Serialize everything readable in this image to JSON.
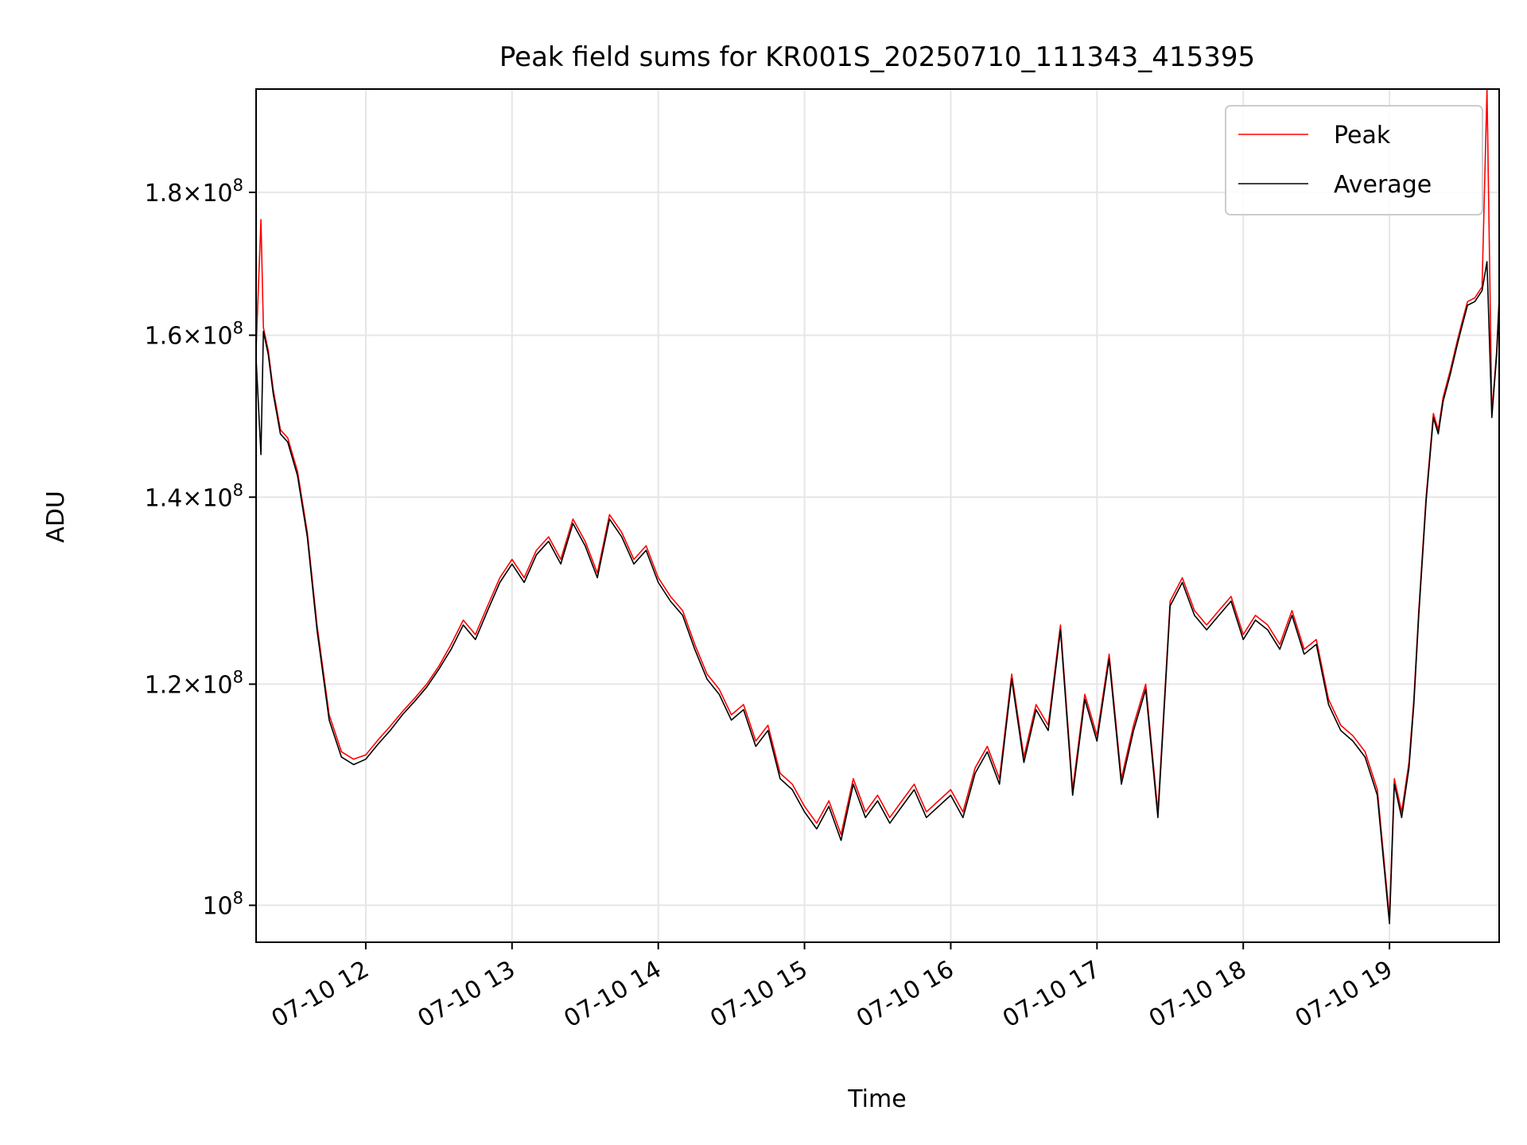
{
  "chart_data": {
    "type": "line",
    "title": "Peak field sums for KR001S_20250710_111343_415395",
    "xlabel": "Time",
    "ylabel": "ADU",
    "yscale": "log",
    "grid": true,
    "legend_position": "upper right",
    "xlim": [
      "2025-07-10 11:15",
      "2025-07-10 19:45"
    ],
    "ylim": [
      97000000,
      196000000
    ],
    "x_ticks": [
      {
        "time": "2025-07-10 12:00",
        "label": "07-10 12"
      },
      {
        "time": "2025-07-10 13:00",
        "label": "07-10 13"
      },
      {
        "time": "2025-07-10 14:00",
        "label": "07-10 14"
      },
      {
        "time": "2025-07-10 15:00",
        "label": "07-10 15"
      },
      {
        "time": "2025-07-10 16:00",
        "label": "07-10 16"
      },
      {
        "time": "2025-07-10 17:00",
        "label": "07-10 17"
      },
      {
        "time": "2025-07-10 18:00",
        "label": "07-10 18"
      },
      {
        "time": "2025-07-10 19:00",
        "label": "07-10 19"
      }
    ],
    "y_ticks": [
      {
        "value": 100000000,
        "mantissa": "",
        "exponent": "8"
      },
      {
        "value": 120000000,
        "mantissa": "1.2",
        "exponent": "8"
      },
      {
        "value": 140000000,
        "mantissa": "1.4",
        "exponent": "8"
      },
      {
        "value": 160000000,
        "mantissa": "1.6",
        "exponent": "8"
      },
      {
        "value": 180000000,
        "mantissa": "1.8",
        "exponent": "8"
      }
    ],
    "series": [
      {
        "name": "Peak",
        "color": "#ff0000",
        "x": [
          "11:15",
          "11:17",
          "11:18",
          "11:20",
          "11:22",
          "11:25",
          "11:28",
          "11:32",
          "11:36",
          "11:40",
          "11:45",
          "11:50",
          "11:55",
          "12:00",
          "12:05",
          "12:10",
          "12:15",
          "12:20",
          "12:25",
          "12:30",
          "12:35",
          "12:40",
          "12:45",
          "12:50",
          "12:55",
          "13:00",
          "13:05",
          "13:10",
          "13:15",
          "13:20",
          "13:25",
          "13:30",
          "13:35",
          "13:40",
          "13:45",
          "13:50",
          "13:55",
          "14:00",
          "14:05",
          "14:10",
          "14:15",
          "14:20",
          "14:25",
          "14:30",
          "14:35",
          "14:40",
          "14:45",
          "14:50",
          "14:55",
          "15:00",
          "15:05",
          "15:10",
          "15:15",
          "15:20",
          "15:25",
          "15:30",
          "15:35",
          "15:40",
          "15:45",
          "15:50",
          "15:55",
          "16:00",
          "16:05",
          "16:10",
          "16:15",
          "16:20",
          "16:25",
          "16:30",
          "16:35",
          "16:40",
          "16:45",
          "16:50",
          "16:55",
          "17:00",
          "17:05",
          "17:10",
          "17:15",
          "17:20",
          "17:25",
          "17:30",
          "17:35",
          "17:40",
          "17:45",
          "17:50",
          "17:55",
          "18:00",
          "18:05",
          "18:10",
          "18:15",
          "18:20",
          "18:25",
          "18:30",
          "18:35",
          "18:40",
          "18:45",
          "18:50",
          "18:55",
          "19:00",
          "19:02",
          "19:05",
          "19:08",
          "19:10",
          "19:12",
          "19:15",
          "19:18",
          "19:20",
          "19:22",
          "19:25",
          "19:28",
          "19:30",
          "19:32",
          "19:35",
          "19:38",
          "19:40",
          "19:42",
          "19:44",
          "19:45"
        ],
        "y": [
          158000000,
          176000000,
          161000000,
          158000000,
          153000000,
          148000000,
          147000000,
          143000000,
          136000000,
          126000000,
          117000000,
          113500000,
          112800000,
          113200000,
          114600000,
          115900000,
          117300000,
          118600000,
          120000000,
          121800000,
          124000000,
          126500000,
          125000000,
          128000000,
          131000000,
          133000000,
          131000000,
          134000000,
          135500000,
          133000000,
          137500000,
          135000000,
          131500000,
          138000000,
          136000000,
          133000000,
          134500000,
          131000000,
          129000000,
          127500000,
          124000000,
          121000000,
          119500000,
          117000000,
          118000000,
          114500000,
          116000000,
          111500000,
          110500000,
          108500000,
          107000000,
          109000000,
          106000000,
          111000000,
          108000000,
          109500000,
          107500000,
          109000000,
          110500000,
          108000000,
          109000000,
          110000000,
          108000000,
          112000000,
          114000000,
          111000000,
          121000000,
          113000000,
          118000000,
          116000000,
          126000000,
          110000000,
          119000000,
          115000000,
          123000000,
          111000000,
          116000000,
          120000000,
          108000000,
          128500000,
          131000000,
          127500000,
          126000000,
          127500000,
          129000000,
          125000000,
          127000000,
          126000000,
          124000000,
          127500000,
          123500000,
          124500000,
          118500000,
          116000000,
          115000000,
          113500000,
          110000000,
          99000000,
          111000000,
          108000000,
          112500000,
          118500000,
          127500000,
          140000000,
          150000000,
          148000000,
          152000000,
          155500000,
          159500000,
          162000000,
          164500000,
          165000000,
          166500000,
          196000000,
          150000000,
          158000000,
          165000000
        ]
      },
      {
        "name": "Average",
        "color": "#000000",
        "x": [
          "11:15",
          "11:17",
          "11:18",
          "11:20",
          "11:22",
          "11:25",
          "11:28",
          "11:32",
          "11:36",
          "11:40",
          "11:45",
          "11:50",
          "11:55",
          "12:00",
          "12:05",
          "12:10",
          "12:15",
          "12:20",
          "12:25",
          "12:30",
          "12:35",
          "12:40",
          "12:45",
          "12:50",
          "12:55",
          "13:00",
          "13:05",
          "13:10",
          "13:15",
          "13:20",
          "13:25",
          "13:30",
          "13:35",
          "13:40",
          "13:45",
          "13:50",
          "13:55",
          "14:00",
          "14:05",
          "14:10",
          "14:15",
          "14:20",
          "14:25",
          "14:30",
          "14:35",
          "14:40",
          "14:45",
          "14:50",
          "14:55",
          "15:00",
          "15:05",
          "15:10",
          "15:15",
          "15:20",
          "15:25",
          "15:30",
          "15:35",
          "15:40",
          "15:45",
          "15:50",
          "15:55",
          "16:00",
          "16:05",
          "16:10",
          "16:15",
          "16:20",
          "16:25",
          "16:30",
          "16:35",
          "16:40",
          "16:45",
          "16:50",
          "16:55",
          "17:00",
          "17:05",
          "17:10",
          "17:15",
          "17:20",
          "17:25",
          "17:30",
          "17:35",
          "17:40",
          "17:45",
          "17:50",
          "17:55",
          "18:00",
          "18:05",
          "18:10",
          "18:15",
          "18:20",
          "18:25",
          "18:30",
          "18:35",
          "18:40",
          "18:45",
          "18:50",
          "18:55",
          "19:00",
          "19:02",
          "19:05",
          "19:08",
          "19:10",
          "19:12",
          "19:15",
          "19:18",
          "19:20",
          "19:22",
          "19:25",
          "19:28",
          "19:30",
          "19:32",
          "19:35",
          "19:38",
          "19:40",
          "19:42",
          "19:44",
          "19:45"
        ],
        "y": [
          157000000,
          145000000,
          160500000,
          157500000,
          152500000,
          147500000,
          146500000,
          142500000,
          135500000,
          125500000,
          116500000,
          113000000,
          112300000,
          112800000,
          114200000,
          115500000,
          117000000,
          118300000,
          119700000,
          121500000,
          123500000,
          126000000,
          124500000,
          127500000,
          130500000,
          132500000,
          130500000,
          133500000,
          135000000,
          132500000,
          137000000,
          134500000,
          131000000,
          137500000,
          135500000,
          132500000,
          134000000,
          130500000,
          128500000,
          127000000,
          123500000,
          120500000,
          119000000,
          116500000,
          117500000,
          114000000,
          115500000,
          111000000,
          110000000,
          108000000,
          106500000,
          108500000,
          105500000,
          110500000,
          107500000,
          109000000,
          107000000,
          108500000,
          110000000,
          107500000,
          108500000,
          109500000,
          107500000,
          111500000,
          113500000,
          110500000,
          120500000,
          112500000,
          117500000,
          115500000,
          125500000,
          109500000,
          118500000,
          114500000,
          122500000,
          110500000,
          115500000,
          119500000,
          107500000,
          128000000,
          130500000,
          127000000,
          125500000,
          127000000,
          128500000,
          124500000,
          126500000,
          125500000,
          123500000,
          127000000,
          123000000,
          124000000,
          118000000,
          115500000,
          114500000,
          113000000,
          109500000,
          98500000,
          110500000,
          107500000,
          112000000,
          118000000,
          127000000,
          139500000,
          149500000,
          147500000,
          151500000,
          155000000,
          159000000,
          161500000,
          164000000,
          164500000,
          166000000,
          170000000,
          149500000,
          157500000,
          164500000
        ]
      }
    ]
  }
}
